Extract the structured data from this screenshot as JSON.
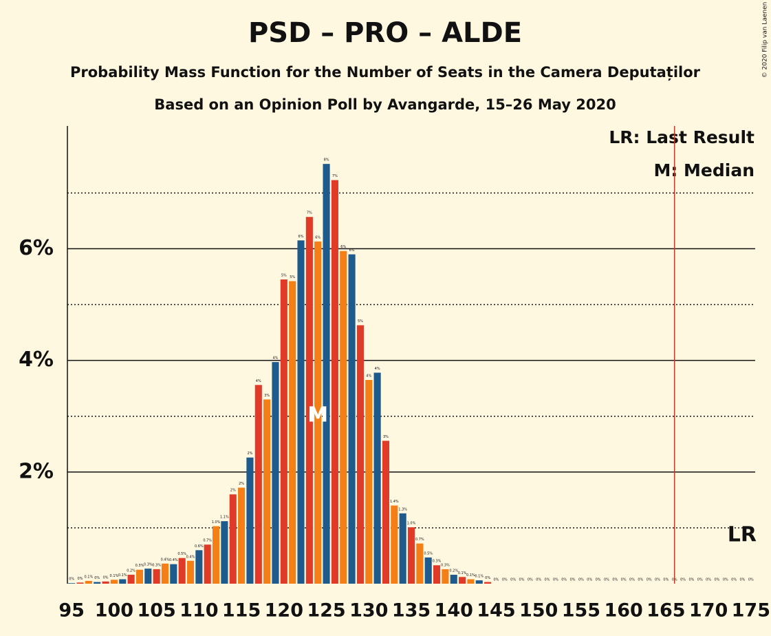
{
  "chart_data": {
    "type": "bar",
    "title": "PSD – PRO – ALDE",
    "subtitle": "Probability Mass Function for the Number of Seats in the Camera Deputaților",
    "subtitle2": "Based on an Opinion Poll by Avangarde, 15–26 May 2020",
    "copyright": "© 2020 Filip van Laenen",
    "legend": [
      "LR: Last Result",
      "M: Median"
    ],
    "median": 124,
    "median_label": "M",
    "last_result": 166,
    "last_result_label": "LR",
    "colors": [
      "#1E5A8C",
      "#E03A28",
      "#F57F17"
    ],
    "x": [
      95,
      96,
      97,
      98,
      99,
      100,
      101,
      102,
      103,
      104,
      105,
      106,
      107,
      108,
      109,
      110,
      111,
      112,
      113,
      114,
      115,
      116,
      117,
      118,
      119,
      120,
      121,
      122,
      123,
      124,
      125,
      126,
      127,
      128,
      129,
      130,
      131,
      132,
      133,
      134,
      135,
      136,
      137,
      138,
      139,
      140,
      141,
      142,
      143,
      144,
      145,
      146,
      147,
      148,
      149,
      150,
      151,
      152,
      153,
      154,
      155,
      156,
      157,
      158,
      159,
      160,
      161,
      162,
      163,
      164,
      165,
      166,
      167,
      168,
      169,
      170,
      171,
      172,
      173,
      174,
      175
    ],
    "values": [
      0.01,
      0.02,
      0.05,
      0.03,
      0.04,
      0.07,
      0.08,
      0.16,
      0.25,
      0.27,
      0.26,
      0.36,
      0.35,
      0.46,
      0.41,
      0.6,
      0.7,
      1.03,
      1.12,
      1.6,
      1.72,
      2.26,
      3.56,
      3.3,
      3.97,
      5.45,
      5.42,
      6.15,
      6.57,
      6.13,
      7.52,
      7.23,
      5.96,
      5.9,
      4.63,
      3.65,
      3.78,
      2.56,
      1.4,
      1.26,
      1.01,
      0.72,
      0.47,
      0.33,
      0.26,
      0.16,
      0.12,
      0.08,
      0.06,
      0.03,
      0,
      0,
      0,
      0,
      0,
      0,
      0,
      0,
      0,
      0,
      0,
      0,
      0,
      0,
      0,
      0,
      0,
      0,
      0,
      0,
      0,
      0,
      0,
      0,
      0,
      0,
      0,
      0,
      0,
      0,
      0
    ],
    "value_labels": [
      "0%",
      "0%",
      "0.1%",
      "0%",
      "0%",
      "0.1%",
      "0.1%",
      "0.2%",
      "0.3%",
      "0.3%",
      "0.3%",
      "0.4%",
      "0.4%",
      "0.5%",
      "0.4%",
      "0.6%",
      "0.7%",
      "1.0%",
      "1.1%",
      "2%",
      "2%",
      "2%",
      "4%",
      "3%",
      "4%",
      "5%",
      "5%",
      "6%",
      "7%",
      "6%",
      "8%",
      "7%",
      "6%",
      "6%",
      "5%",
      "4%",
      "4%",
      "3%",
      "1.4%",
      "1.3%",
      "1.0%",
      "0.7%",
      "0.5%",
      "0.3%",
      "0.3%",
      "0.2%",
      "0.1%",
      "0.1%",
      "0.1%",
      "0%",
      "0%",
      "0%",
      "0%",
      "0%",
      "0%",
      "0%",
      "0%",
      "0%",
      "0%",
      "0%",
      "0%",
      "0%",
      "0%",
      "0%",
      "0%",
      "0%",
      "0%",
      "0%",
      "0%",
      "0%",
      "0%",
      "0%",
      "0%",
      "0%",
      "0%",
      "0%",
      "0%",
      "0%",
      "0%",
      "0%",
      "0%"
    ],
    "xlim": [
      94.5,
      175.5
    ],
    "xticks": [
      95,
      100,
      105,
      110,
      115,
      120,
      125,
      130,
      135,
      140,
      145,
      150,
      155,
      160,
      165,
      170,
      175
    ],
    "ylim": [
      0,
      8.2
    ],
    "yticks": [
      {
        "value": 2,
        "label": "2%"
      },
      {
        "value": 4,
        "label": "4%"
      },
      {
        "value": 6,
        "label": "6%"
      }
    ],
    "minor_yticks": [
      1,
      3,
      5,
      7
    ]
  }
}
